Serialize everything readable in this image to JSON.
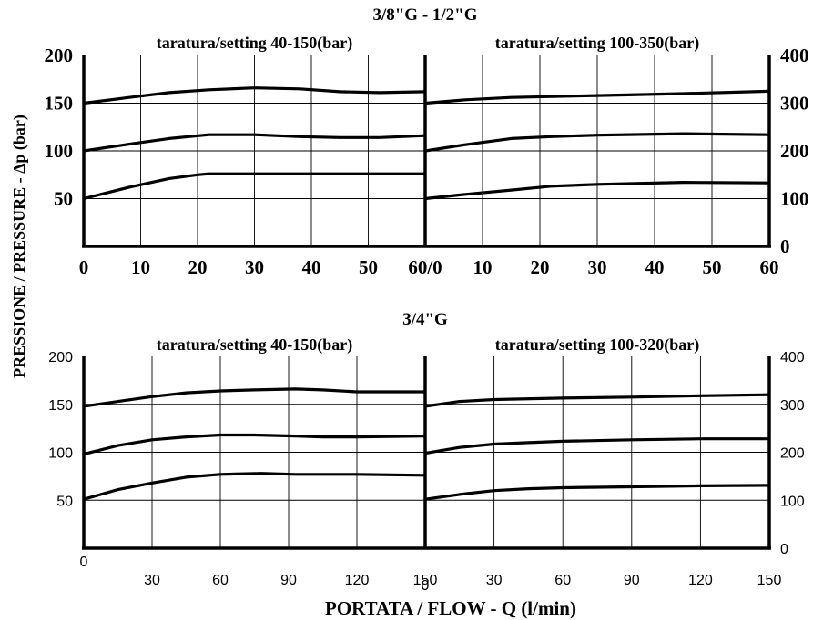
{
  "page": {
    "ylabel": "PRESSIONE / PRESSURE -  Δp (bar)",
    "xlabel": "PORTATA / FLOW - Q (l/min)"
  },
  "chart_data": [
    {
      "type": "line",
      "group_title": "3/8\"G - 1/2\"G",
      "panels": [
        {
          "subtitle": "taratura/setting 40-150(bar)",
          "xlim": [
            0,
            60
          ],
          "ylim": [
            0,
            200
          ],
          "x_ticks": [
            {
              "value": 0,
              "label": "0"
            },
            {
              "value": 10,
              "label": "10"
            },
            {
              "value": 20,
              "label": "20"
            },
            {
              "value": 30,
              "label": "30"
            },
            {
              "value": 40,
              "label": "40"
            },
            {
              "value": 50,
              "label": "50"
            },
            {
              "value": 60,
              "label": "60/0"
            }
          ],
          "y_ticks": [
            {
              "value": 50,
              "label": "50"
            },
            {
              "value": 100,
              "label": "100"
            },
            {
              "value": 150,
              "label": "150"
            },
            {
              "value": 200,
              "label": "200"
            }
          ],
          "series": [
            {
              "x": [
                0,
                8,
                15,
                22,
                30,
                38,
                45,
                52,
                60
              ],
              "y": [
                150,
                156,
                161,
                164,
                166,
                165,
                162,
                161,
                162
              ]
            },
            {
              "x": [
                0,
                8,
                15,
                22,
                30,
                38,
                45,
                52,
                60
              ],
              "y": [
                100,
                107,
                113,
                117,
                117,
                115,
                114,
                114,
                116
              ]
            },
            {
              "x": [
                0,
                8,
                15,
                20,
                22,
                30,
                38,
                45,
                52,
                60
              ],
              "y": [
                50,
                62,
                71,
                75,
                76,
                76,
                76,
                76,
                76,
                76
              ]
            }
          ]
        },
        {
          "subtitle": "taratura/setting 100-350(bar)",
          "xlim": [
            0,
            60
          ],
          "ylim": [
            0,
            400
          ],
          "y_axis_side": "right",
          "x_ticks": [
            {
              "value": 10,
              "label": "10"
            },
            {
              "value": 20,
              "label": "20"
            },
            {
              "value": 30,
              "label": "30"
            },
            {
              "value": 40,
              "label": "40"
            },
            {
              "value": 50,
              "label": "50"
            },
            {
              "value": 60,
              "label": "60"
            }
          ],
          "y_ticks": [
            {
              "value": 0,
              "label": "0"
            },
            {
              "value": 100,
              "label": "100"
            },
            {
              "value": 200,
              "label": "200"
            },
            {
              "value": 300,
              "label": "300"
            },
            {
              "value": 400,
              "label": "400"
            }
          ],
          "series": [
            {
              "x": [
                0,
                7,
                15,
                30,
                45,
                60
              ],
              "y": [
                300,
                307,
                312,
                316,
                320,
                325
              ]
            },
            {
              "x": [
                0,
                7,
                15,
                22,
                30,
                45,
                60
              ],
              "y": [
                200,
                213,
                226,
                230,
                233,
                236,
                234
              ]
            },
            {
              "x": [
                0,
                7,
                15,
                22,
                30,
                45,
                60
              ],
              "y": [
                100,
                109,
                118,
                126,
                130,
                134,
                133
              ]
            }
          ]
        }
      ]
    },
    {
      "type": "line",
      "group_title": "3/4\"G",
      "panels": [
        {
          "subtitle": "taratura/setting 40-150(bar)",
          "xlim": [
            0,
            150
          ],
          "ylim": [
            0,
            200
          ],
          "x_ticks": [
            {
              "value": 0,
              "label": "0"
            },
            {
              "value": 30,
              "label": "30"
            },
            {
              "value": 60,
              "label": "60"
            },
            {
              "value": 90,
              "label": "90"
            },
            {
              "value": 120,
              "label": "120"
            },
            {
              "value": 150,
              "label": "150"
            }
          ],
          "y_ticks": [
            {
              "value": 50,
              "label": "50"
            },
            {
              "value": 100,
              "label": "100"
            },
            {
              "value": 150,
              "label": "150"
            },
            {
              "value": 200,
              "label": "200"
            }
          ],
          "series": [
            {
              "x": [
                0,
                15,
                30,
                45,
                60,
                75,
                93,
                105,
                120,
                150
              ],
              "y": [
                148,
                153,
                158,
                162,
                164,
                165,
                166,
                165,
                163,
                163
              ]
            },
            {
              "x": [
                0,
                15,
                30,
                45,
                60,
                75,
                93,
                105,
                120,
                150
              ],
              "y": [
                98,
                107,
                113,
                116,
                118,
                118,
                117,
                116,
                116,
                117
              ]
            },
            {
              "x": [
                0,
                15,
                30,
                45,
                60,
                78,
                93,
                120,
                150
              ],
              "y": [
                51,
                61,
                68,
                74,
                77,
                78,
                77,
                77,
                76
              ]
            }
          ]
        },
        {
          "subtitle": "taratura/setting 100-320(bar)",
          "xlim": [
            0,
            150
          ],
          "ylim": [
            0,
            400
          ],
          "y_axis_side": "right",
          "x_ticks": [
            {
              "value": 0,
              "label": "0"
            },
            {
              "value": 30,
              "label": "30"
            },
            {
              "value": 60,
              "label": "60"
            },
            {
              "value": 90,
              "label": "90"
            },
            {
              "value": 120,
              "label": "120"
            },
            {
              "value": 150,
              "label": "150"
            }
          ],
          "y_ticks": [
            {
              "value": 0,
              "label": "0"
            },
            {
              "value": 100,
              "label": "100"
            },
            {
              "value": 200,
              "label": "200"
            },
            {
              "value": 300,
              "label": "300"
            },
            {
              "value": 400,
              "label": "400"
            }
          ],
          "series": [
            {
              "x": [
                0,
                15,
                30,
                60,
                90,
                120,
                150
              ],
              "y": [
                296,
                306,
                310,
                313,
                315,
                318,
                320
              ]
            },
            {
              "x": [
                0,
                15,
                30,
                45,
                60,
                90,
                120,
                150
              ],
              "y": [
                198,
                210,
                217,
                220,
                223,
                226,
                228,
                228
              ]
            },
            {
              "x": [
                0,
                15,
                30,
                45,
                60,
                90,
                120,
                150
              ],
              "y": [
                102,
                112,
                120,
                124,
                126,
                128,
                130,
                131
              ]
            }
          ]
        }
      ]
    }
  ]
}
